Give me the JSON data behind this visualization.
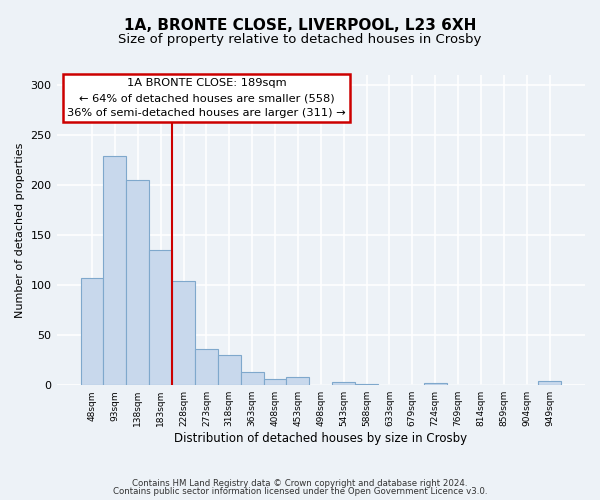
{
  "title": "1A, BRONTE CLOSE, LIVERPOOL, L23 6XH",
  "subtitle": "Size of property relative to detached houses in Crosby",
  "xlabel": "Distribution of detached houses by size in Crosby",
  "ylabel": "Number of detached properties",
  "bar_color": "#c8d8ec",
  "bar_edge_color": "#7fa8cc",
  "categories": [
    "48sqm",
    "93sqm",
    "138sqm",
    "183sqm",
    "228sqm",
    "273sqm",
    "318sqm",
    "363sqm",
    "408sqm",
    "453sqm",
    "498sqm",
    "543sqm",
    "588sqm",
    "633sqm",
    "679sqm",
    "724sqm",
    "769sqm",
    "814sqm",
    "859sqm",
    "904sqm",
    "949sqm"
  ],
  "values": [
    107,
    229,
    205,
    135,
    104,
    36,
    30,
    13,
    6,
    8,
    0,
    3,
    1,
    0,
    0,
    2,
    0,
    0,
    0,
    0,
    4
  ],
  "ylim": [
    0,
    310
  ],
  "yticks": [
    0,
    50,
    100,
    150,
    200,
    250,
    300
  ],
  "property_line_x": 3.5,
  "annotation_title": "1A BRONTE CLOSE: 189sqm",
  "annotation_line1": "← 64% of detached houses are smaller (558)",
  "annotation_line2": "36% of semi-detached houses are larger (311) →",
  "annotation_box_color": "#ffffff",
  "annotation_box_edge_color": "#cc0000",
  "property_line_color": "#cc0000",
  "footer1": "Contains HM Land Registry data © Crown copyright and database right 2024.",
  "footer2": "Contains public sector information licensed under the Open Government Licence v3.0.",
  "background_color": "#edf2f7",
  "plot_background": "#edf2f7",
  "grid_color": "#ffffff",
  "title_fontsize": 11,
  "subtitle_fontsize": 9.5
}
